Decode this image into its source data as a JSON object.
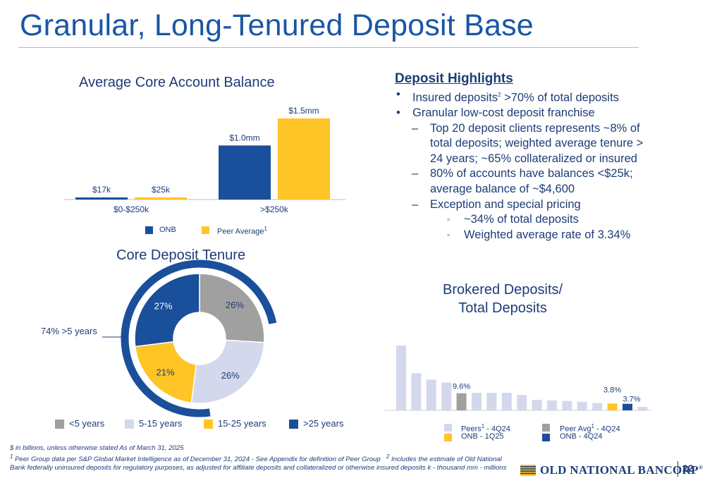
{
  "title": "Granular, Long-Tenured Deposit Base",
  "colors": {
    "onb_blue": "#1a4f9c",
    "peer_gold": "#ffc425",
    "gray": "#a0a0a0",
    "light": "#d3d8ec",
    "text_navy": "#1e3c78"
  },
  "avg_balance": {
    "title": "Average Core Account Balance",
    "legend_onb": "ONB",
    "legend_peer": "Peer Average",
    "legend_peer_sup": "1"
  },
  "tenure": {
    "title": "Core Deposit Tenure",
    "callout": "74% >5 years"
  },
  "highlights": {
    "heading": "Deposit Highlights",
    "b1_pre": "Insured deposits",
    "b1_sup": "2",
    "b1_post": " >70% of total deposits",
    "b2": "Granular low-cost deposit franchise",
    "s1_l1": "Top 20 deposit clients represents ~8% of",
    "s1_l2": "total deposits; weighted average tenure >",
    "s1_l3": "24 years; ~65% collateralized or insured",
    "s2_l1": "80% of accounts have balances <$25k;",
    "s2_l2": "average balance of ~$4,600",
    "s3": "Exception and special pricing",
    "t1": "~34% of total deposits",
    "t2": "Weighted average rate of 3.34%",
    "bullet": "•",
    "dash": "–",
    "circle": "◦"
  },
  "brokered": {
    "title_l1": "Brokered Deposits/",
    "title_l2": "Total Deposits",
    "leg_peers": "Peers",
    "leg_peers_sup": "1",
    "leg_peers_post": " - 4Q24",
    "leg_peeravg": "Peer Avg",
    "leg_peeravg_sup": "1",
    "leg_peeravg_post": " - 4Q24",
    "leg_onb_q1": "ONB - 1Q25",
    "leg_onb_q4": "ONB - 4Q24"
  },
  "footnotes": {
    "line1": "$ in billions, unless otherwise stated      As of March 31, 2025",
    "fn1_sup": "1",
    "fn1": " Peer Group data per S&P Global Market Intelligence as of December 31, 2024 - See Appendix for definition of Peer Group",
    "fn2_sup": "2",
    "fn2": " Includes the estimate of Old National Bank federally uninsured deposits for regulatory purposes, as adjusted for affiliate deposits and collateralized or otherwise insured deposits     k - thousand     mm - millions"
  },
  "logo_text": "OLD NATIONAL BANCORP",
  "logo_reg": "®",
  "page_number": "22",
  "chart_data": [
    {
      "type": "bar",
      "title": "Average Core Account Balance",
      "categories": [
        "$0-$250k",
        ">$250k"
      ],
      "series": [
        {
          "name": "ONB",
          "values": [
            0.017,
            1.0
          ],
          "labels": [
            "$17k",
            "$1.0mm"
          ],
          "color": "#1a4f9c"
        },
        {
          "name": "Peer Average",
          "values": [
            0.025,
            1.5
          ],
          "labels": [
            "$25k",
            "$1.5mm"
          ],
          "color": "#ffc425"
        }
      ],
      "ylim": [
        0,
        1.6
      ],
      "legend": "bottom"
    },
    {
      "type": "pie",
      "title": "Core Deposit Tenure",
      "labels": [
        "<5 years",
        "5-15 years",
        "15-25 years",
        ">25 years"
      ],
      "values": [
        26,
        26,
        21,
        27
      ],
      "value_labels": [
        "26%",
        "26%",
        "21%",
        "27%"
      ],
      "colors": [
        "#a0a0a0",
        "#d3d8ec",
        "#ffc425",
        "#1a4f9c"
      ],
      "donut": true,
      "legend": "bottom"
    },
    {
      "type": "bar",
      "title": "Brokered Deposits/ Total Deposits",
      "categories": [
        "1",
        "2",
        "3",
        "4",
        "5",
        "6",
        "7",
        "8",
        "9",
        "10",
        "11",
        "12",
        "13",
        "14",
        "15",
        "16",
        "17"
      ],
      "values": [
        36.3,
        20.8,
        17.2,
        15.6,
        9.6,
        9.8,
        9.8,
        9.8,
        8.6,
        5.9,
        5.6,
        5.3,
        4.8,
        4.1,
        3.8,
        3.7,
        1.9
      ],
      "series_kind": [
        "peer",
        "peer",
        "peer",
        "peer",
        "peer_avg",
        "peer",
        "peer",
        "peer",
        "peer",
        "peer",
        "peer",
        "peer",
        "peer",
        "peer",
        "onb_1q25",
        "onb_4q24",
        "peer"
      ],
      "data_labels": {
        "4": "9.6%",
        "14": "3.8%",
        "15": "3.7%"
      },
      "colors": {
        "peer": "#d3d8ec",
        "peer_avg": "#a0a0a0",
        "onb_1q25": "#ffc425",
        "onb_4q24": "#1a4f9c"
      },
      "legend": "bottom"
    }
  ]
}
